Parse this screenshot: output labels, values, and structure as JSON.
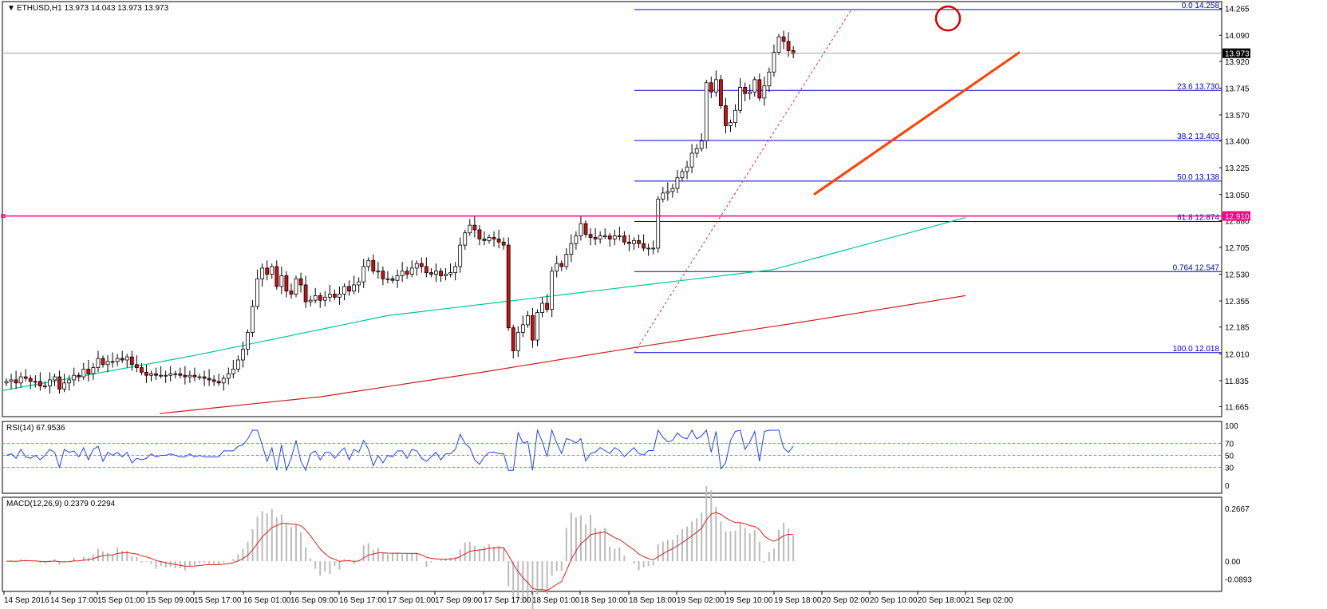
{
  "colors": {
    "bull": "#ffffff",
    "bear": "#d01010",
    "wick": "#000000",
    "grid": "#c0c0c0",
    "fib": "#0000cc",
    "sma_fast": "#00cc88",
    "sma_slow": "#cc2020",
    "res": "#ff0080",
    "trend": "#ff4000",
    "rsi": "#2040ff",
    "lvl": "#d060d0",
    "macd_hist": "#bbbbbb",
    "macd_sig": "#dd2020",
    "last_bg": "#000000"
  },
  "main": {
    "label": "ETHUSD,H1  13.973 14.043 13.973 13.973",
    "menu_icon": "triangle-down-icon",
    "ylim": [
      11.6,
      14.31
    ],
    "y_ticks": [
      "14.265",
      "14.090",
      "13.920",
      "13.745",
      "13.570",
      "13.400",
      "13.225",
      "13.050",
      "12.880",
      "12.705",
      "12.530",
      "12.355",
      "12.185",
      "12.010",
      "11.835",
      "11.665"
    ],
    "y_tick_values": [
      14.265,
      14.09,
      13.92,
      13.745,
      13.57,
      13.4,
      13.225,
      13.05,
      12.88,
      12.705,
      12.53,
      12.355,
      12.185,
      12.01,
      11.835,
      11.665
    ],
    "last_price": "13.973",
    "resistance": {
      "value": 12.91,
      "label": "12.910"
    },
    "fib": [
      {
        "level": "0.0",
        "price": 14.258,
        "label": "0.0  14.258"
      },
      {
        "level": "23.6",
        "price": 13.73,
        "label": "23.6  13.730"
      },
      {
        "level": "38.2",
        "price": 13.403,
        "label": "38.2  13.403"
      },
      {
        "level": "50.0",
        "price": 13.138,
        "label": "50.0  13.138"
      },
      {
        "level": "61.8",
        "price": 12.874,
        "label": "61.8  12.874"
      },
      {
        "level": "0.764",
        "price": 12.547,
        "label": "0.764  12.547"
      },
      {
        "level": "100.0",
        "price": 12.018,
        "label": "100.0  12.018"
      }
    ]
  },
  "x_labels": [
    "14 Sep 2016",
    "14 Sep 17:00",
    "15 Sep 01:00",
    "15 Sep 09:00",
    "15 Sep 17:00",
    "16 Sep 01:00",
    "16 Sep 09:00",
    "16 Sep 17:00",
    "17 Sep 01:00",
    "17 Sep 09:00",
    "17 Sep 17:00",
    "18 Sep 01:00",
    "18 Sep 10:00",
    "18 Sep 18:00",
    "19 Sep 02:00",
    "19 Sep 10:00",
    "19 Sep 18:00",
    "20 Sep 02:00",
    "20 Sep 10:00",
    "20 Sep 18:00",
    "21 Sep 02:00"
  ],
  "rsi": {
    "label": "RSI(14) 67.9536",
    "ylim": [
      0,
      100
    ],
    "ticks": [
      "100",
      "70",
      "50",
      "30",
      "0"
    ],
    "tick_values": [
      100,
      70,
      50,
      30,
      0
    ]
  },
  "macd": {
    "label": "MACD(12,26,9) 0.2379 0.2294",
    "ylim": [
      -0.12,
      0.29
    ],
    "ticks": [
      "0.2667",
      "0.00",
      "-0.0893"
    ],
    "tick_values": [
      0.2667,
      0,
      -0.0893
    ]
  },
  "chart_data": {
    "type": "candlestick",
    "title": "ETHUSD,H1",
    "note": "approximate hourly OHLC path read from chart",
    "close_path": [
      11.83,
      11.84,
      11.82,
      11.86,
      11.85,
      11.83,
      11.83,
      11.8,
      11.8,
      11.84,
      11.86,
      11.78,
      11.82,
      11.84,
      11.87,
      11.86,
      11.91,
      11.88,
      11.92,
      11.98,
      11.94,
      11.96,
      11.96,
      11.98,
      11.97,
      11.99,
      11.94,
      11.92,
      11.89,
      11.87,
      11.88,
      11.87,
      11.87,
      11.87,
      11.88,
      11.88,
      11.87,
      11.86,
      11.87,
      11.86,
      11.86,
      11.85,
      11.84,
      11.83,
      11.82,
      11.85,
      11.88,
      11.91,
      11.97,
      12.04,
      12.15,
      12.32,
      12.5,
      12.57,
      12.53,
      12.58,
      12.45,
      12.52,
      12.42,
      12.4,
      12.5,
      12.46,
      12.35,
      12.36,
      12.39,
      12.36,
      12.38,
      12.4,
      12.38,
      12.4,
      12.45,
      12.42,
      12.46,
      12.48,
      12.58,
      12.62,
      12.55,
      12.55,
      12.5,
      12.5,
      12.49,
      12.52,
      12.55,
      12.53,
      12.57,
      12.6,
      12.58,
      12.54,
      12.53,
      12.55,
      12.52,
      12.53,
      12.54,
      12.58,
      12.72,
      12.8,
      12.85,
      12.82,
      12.76,
      12.75,
      12.77,
      12.76,
      12.74,
      12.72,
      12.18,
      12.03,
      12.15,
      12.2,
      12.26,
      12.1,
      12.28,
      12.34,
      12.3,
      12.55,
      12.6,
      12.58,
      12.66,
      12.73,
      12.78,
      12.86,
      12.79,
      12.77,
      12.76,
      12.78,
      12.78,
      12.76,
      12.78,
      12.78,
      12.74,
      12.73,
      12.75,
      12.73,
      12.7,
      12.7,
      12.7,
      13.02,
      13.06,
      13.07,
      13.09,
      13.16,
      13.2,
      13.23,
      13.32,
      13.35,
      13.4,
      13.78,
      13.72,
      13.8,
      13.63,
      13.5,
      13.52,
      13.6,
      13.75,
      13.71,
      13.72,
      13.8,
      13.68,
      13.76,
      13.85,
      13.98,
      14.08,
      14.05,
      13.99,
      13.97
    ],
    "sma_fast_path": [
      11.77,
      12.0,
      12.26,
      12.41,
      12.56,
      12.9
    ],
    "sma_slow_path": [
      11.62,
      11.73,
      11.89,
      12.06,
      12.22,
      12.39
    ]
  }
}
